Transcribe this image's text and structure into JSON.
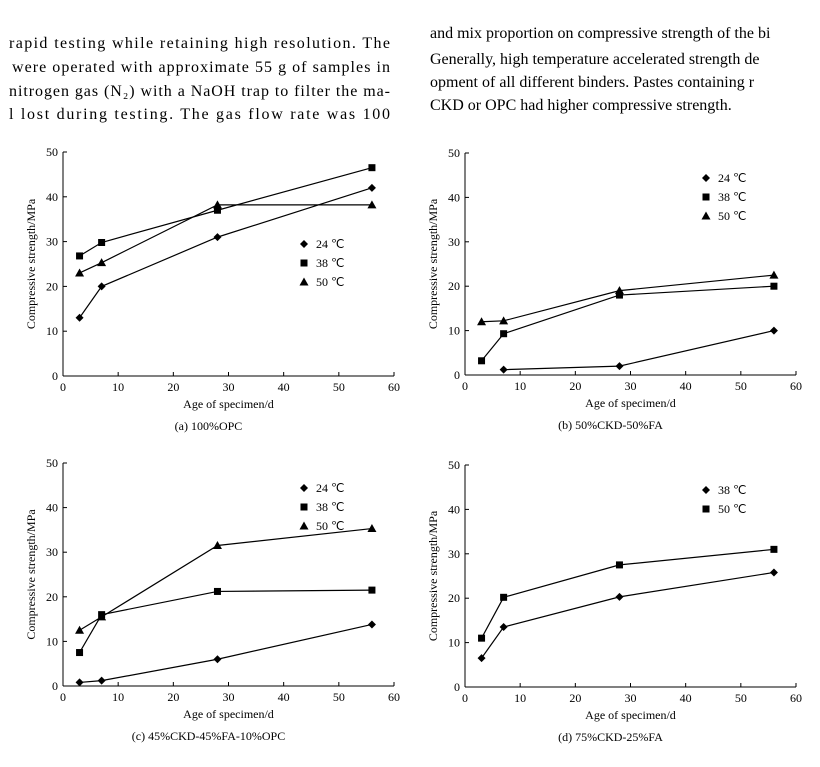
{
  "text_left": [
    "rapid testing while retaining high resolution. The",
    "were operated with approximate 55 g of samples in",
    "nitrogen gas (N₂) with a NaOH trap to filter the ma-",
    "l lost during testing. The gas flow rate was 100"
  ],
  "text_right": [
    "and mix proportion on compressive strength of the bi",
    "Generally, high temperature accelerated strength de",
    "opment of all different binders. Pastes containing r",
    "CKD or OPC had higher compressive strength."
  ],
  "chart_data": [
    {
      "type": "line",
      "caption": "(a) 100%OPC",
      "x_label": "Age of specimen/d",
      "y_label": "Compressive strength/MPa",
      "x": [
        3,
        7,
        28,
        56
      ],
      "xlim": [
        0,
        60
      ],
      "xticks": [
        0,
        10,
        20,
        30,
        40,
        50,
        60
      ],
      "ylim": [
        0,
        50
      ],
      "yticks": [
        0,
        10,
        20,
        30,
        40,
        50
      ],
      "legend": "center right",
      "series": [
        {
          "name": "24 ℃",
          "color": "#000000",
          "marker": "diamond",
          "values": [
            13,
            20,
            31,
            42
          ]
        },
        {
          "name": "38 ℃",
          "color": "#000000",
          "marker": "square",
          "values": [
            26.8,
            29.8,
            37,
            46.5
          ]
        },
        {
          "name": "50 ℃",
          "color": "#000000",
          "marker": "triangle",
          "values": [
            23,
            25.3,
            38.2,
            38.2
          ]
        }
      ]
    },
    {
      "type": "line",
      "caption": "(b) 50%CKD-50%FA",
      "x_label": "Age of specimen/d",
      "y_label": "Compressive strength/MPa",
      "x": [
        3,
        7,
        28,
        56
      ],
      "xlim": [
        0,
        60
      ],
      "xticks": [
        0,
        10,
        20,
        30,
        40,
        50,
        60
      ],
      "ylim": [
        0,
        50
      ],
      "yticks": [
        0,
        10,
        20,
        30,
        40,
        50
      ],
      "legend": "upper right",
      "series": [
        {
          "name": "24 ℃",
          "color": "#000000",
          "marker": "diamond",
          "values": [
            null,
            1.2,
            2,
            10
          ]
        },
        {
          "name": "38 ℃",
          "color": "#000000",
          "marker": "square",
          "values": [
            3.2,
            9.3,
            18,
            20
          ]
        },
        {
          "name": "50 ℃",
          "color": "#000000",
          "marker": "triangle",
          "values": [
            12,
            12.2,
            19,
            22.5
          ]
        }
      ]
    },
    {
      "type": "line",
      "caption": "(c) 45%CKD-45%FA-10%OPC",
      "x_label": "Age of specimen/d",
      "y_label": "Compressive strength/MPa",
      "x": [
        3,
        7,
        28,
        56
      ],
      "xlim": [
        0,
        60
      ],
      "xticks": [
        0,
        10,
        20,
        30,
        40,
        50,
        60
      ],
      "ylim": [
        0,
        50
      ],
      "yticks": [
        0,
        10,
        20,
        30,
        40,
        50
      ],
      "legend": "upper right",
      "series": [
        {
          "name": "24 ℃",
          "color": "#000000",
          "marker": "diamond",
          "values": [
            0.8,
            1.2,
            6,
            13.8
          ]
        },
        {
          "name": "38 ℃",
          "color": "#000000",
          "marker": "square",
          "values": [
            7.5,
            16,
            21.2,
            21.5
          ]
        },
        {
          "name": "50 ℃",
          "color": "#000000",
          "marker": "triangle",
          "values": [
            12.5,
            15.5,
            31.5,
            35.3
          ]
        }
      ]
    },
    {
      "type": "line",
      "caption": "(d) 75%CKD-25%FA",
      "x_label": "Age of specimen/d",
      "y_label": "Compressive strength/MPa",
      "x": [
        3,
        7,
        28,
        56
      ],
      "xlim": [
        0,
        60
      ],
      "xticks": [
        0,
        10,
        20,
        30,
        40,
        50,
        60
      ],
      "ylim": [
        0,
        50
      ],
      "yticks": [
        0,
        10,
        20,
        30,
        40,
        50
      ],
      "legend": "upper right",
      "series": [
        {
          "name": "38 ℃",
          "color": "#000000",
          "marker": "diamond",
          "values": [
            6.5,
            13.5,
            20.3,
            25.8
          ]
        },
        {
          "name": "50 ℃",
          "color": "#000000",
          "marker": "square",
          "values": [
            11,
            20.2,
            27.5,
            31
          ]
        }
      ]
    }
  ]
}
